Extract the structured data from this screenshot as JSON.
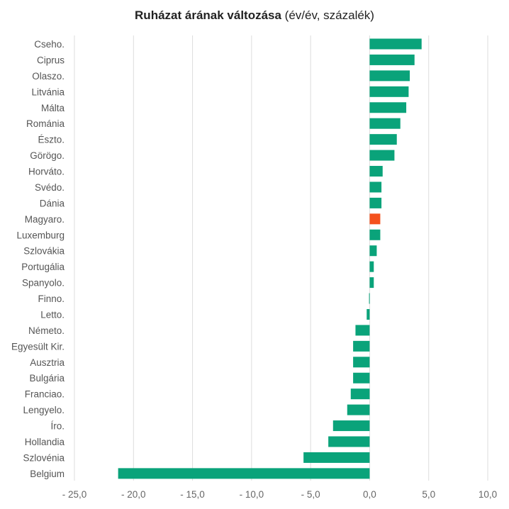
{
  "chart_data": {
    "type": "bar",
    "orientation": "horizontal",
    "title_bold": "Ruházat árának változása",
    "title_rest": " (év/év, százalék)",
    "xlim": [
      -25,
      10
    ],
    "xticks": [
      -25,
      -20,
      -15,
      -10,
      -5,
      0,
      5,
      10
    ],
    "xtick_labels": [
      "- 25,0",
      "- 20,0",
      "- 15,0",
      "- 10,0",
      "- 5,0",
      "0,0",
      "5,0",
      "10,0"
    ],
    "grid": true,
    "categories": [
      "Cseho.",
      "Ciprus",
      "Olaszo.",
      "Litvánia",
      "Málta",
      "Románia",
      "Észto.",
      "Görögo.",
      "Horváto.",
      "Svédo.",
      "Dánia",
      "Magyaro.",
      "Luxemburg",
      "Szlovákia",
      "Portugália",
      "Spanyolo.",
      "Finno.",
      "Letto.",
      "Németo.",
      "Egyesült Kir.",
      "Ausztria",
      "Bulgária",
      "Franciao.",
      "Lengyelo.",
      "Íro.",
      "Hollandia",
      "Szlovénia",
      "Belgium"
    ],
    "values": [
      4.4,
      3.8,
      3.4,
      3.3,
      3.1,
      2.6,
      2.3,
      2.1,
      1.1,
      1.0,
      1.0,
      0.9,
      0.9,
      0.6,
      0.35,
      0.35,
      -0.05,
      -0.25,
      -1.2,
      -1.4,
      -1.4,
      -1.4,
      -1.6,
      -1.9,
      -3.1,
      -3.5,
      -5.6,
      -21.3
    ],
    "colors": {
      "default": "#0aa37a",
      "highlight": "#f4511e",
      "grid": "#dddddd"
    },
    "highlight_category": "Magyaro."
  }
}
